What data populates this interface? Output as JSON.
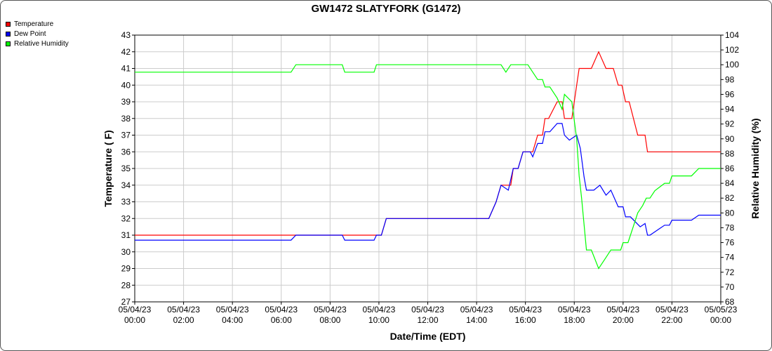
{
  "chart_data": {
    "type": "line",
    "title": "GW1472 SLATYFORK (G1472)",
    "xlabel": "Date/Time (EDT)",
    "ylabel": "Temperature ( F)",
    "y2label": "Relative Humidity (%)",
    "xlim": [
      0,
      24
    ],
    "ylim": [
      27,
      43
    ],
    "y2lim": [
      68,
      104
    ],
    "grid": true,
    "legend_position": "top-left",
    "x_ticks": [
      {
        "value": 0,
        "date": "05/04/23",
        "time": "00:00"
      },
      {
        "value": 2,
        "date": "05/04/23",
        "time": "02:00"
      },
      {
        "value": 4,
        "date": "05/04/23",
        "time": "04:00"
      },
      {
        "value": 6,
        "date": "05/04/23",
        "time": "06:00"
      },
      {
        "value": 8,
        "date": "05/04/23",
        "time": "08:00"
      },
      {
        "value": 10,
        "date": "05/04/23",
        "time": "10:00"
      },
      {
        "value": 12,
        "date": "05/04/23",
        "time": "12:00"
      },
      {
        "value": 14,
        "date": "05/04/23",
        "time": "14:00"
      },
      {
        "value": 16,
        "date": "05/04/23",
        "time": "16:00"
      },
      {
        "value": 18,
        "date": "05/04/23",
        "time": "18:00"
      },
      {
        "value": 20,
        "date": "05/04/23",
        "time": "20:00"
      },
      {
        "value": 22,
        "date": "05/04/23",
        "time": "22:00"
      },
      {
        "value": 24,
        "date": "05/05/23",
        "time": "00:00"
      }
    ],
    "y_ticks": [
      27,
      28,
      29,
      30,
      31,
      32,
      33,
      34,
      35,
      36,
      37,
      38,
      39,
      40,
      41,
      42,
      43
    ],
    "y2_ticks": [
      68,
      70,
      72,
      74,
      76,
      78,
      80,
      82,
      84,
      86,
      88,
      90,
      92,
      94,
      96,
      98,
      100,
      102,
      104
    ],
    "series": [
      {
        "name": "Temperature",
        "color": "#ff0000",
        "axis": "left",
        "points": [
          [
            0,
            31
          ],
          [
            10.1,
            31
          ],
          [
            10.3,
            32
          ],
          [
            14.5,
            32
          ],
          [
            14.8,
            33
          ],
          [
            15,
            34
          ],
          [
            15.4,
            34
          ],
          [
            15.5,
            35
          ],
          [
            15.7,
            35
          ],
          [
            15.9,
            36
          ],
          [
            16.3,
            36
          ],
          [
            16.5,
            37
          ],
          [
            16.7,
            37
          ],
          [
            16.8,
            38
          ],
          [
            16.95,
            38
          ],
          [
            17.3,
            39
          ],
          [
            17.5,
            39
          ],
          [
            17.6,
            38
          ],
          [
            17.9,
            38
          ],
          [
            18.1,
            40
          ],
          [
            18.2,
            41
          ],
          [
            18.7,
            41
          ],
          [
            19,
            42
          ],
          [
            19.3,
            41
          ],
          [
            19.6,
            41
          ],
          [
            19.8,
            40
          ],
          [
            19.95,
            40
          ],
          [
            20.1,
            39
          ],
          [
            20.25,
            39
          ],
          [
            20.6,
            37
          ],
          [
            20.9,
            37
          ],
          [
            21,
            36
          ],
          [
            24,
            36
          ]
        ]
      },
      {
        "name": "Dew Point",
        "color": "#0000ff",
        "axis": "left",
        "points": [
          [
            0,
            30.7
          ],
          [
            6.4,
            30.7
          ],
          [
            6.6,
            31
          ],
          [
            8.5,
            31
          ],
          [
            8.6,
            30.7
          ],
          [
            9.8,
            30.7
          ],
          [
            9.9,
            31
          ],
          [
            10.1,
            31
          ],
          [
            10.3,
            32
          ],
          [
            14.5,
            32
          ],
          [
            14.8,
            33
          ],
          [
            15,
            34
          ],
          [
            15.3,
            33.7
          ],
          [
            15.5,
            35
          ],
          [
            15.7,
            35
          ],
          [
            15.9,
            36
          ],
          [
            16.2,
            36
          ],
          [
            16.3,
            35.7
          ],
          [
            16.5,
            36.5
          ],
          [
            16.7,
            36.5
          ],
          [
            16.8,
            37.2
          ],
          [
            17,
            37.2
          ],
          [
            17.3,
            37.7
          ],
          [
            17.5,
            37.7
          ],
          [
            17.6,
            37
          ],
          [
            17.8,
            36.7
          ],
          [
            18.1,
            37
          ],
          [
            18.25,
            36.2
          ],
          [
            18.4,
            34.5
          ],
          [
            18.5,
            33.7
          ],
          [
            18.8,
            33.7
          ],
          [
            19.05,
            34
          ],
          [
            19.3,
            33.4
          ],
          [
            19.5,
            33.7
          ],
          [
            19.8,
            32.7
          ],
          [
            20,
            32.7
          ],
          [
            20.1,
            32.1
          ],
          [
            20.3,
            32.1
          ],
          [
            20.7,
            31.5
          ],
          [
            20.9,
            31.7
          ],
          [
            21,
            31
          ],
          [
            21.1,
            31
          ],
          [
            21.5,
            31.4
          ],
          [
            21.7,
            31.6
          ],
          [
            21.9,
            31.6
          ],
          [
            22,
            31.9
          ],
          [
            22.8,
            31.9
          ],
          [
            23.1,
            32.2
          ],
          [
            24,
            32.2
          ]
        ]
      },
      {
        "name": "Relative Humidity",
        "color": "#00ff00",
        "axis": "right",
        "points": [
          [
            0,
            99
          ],
          [
            6.4,
            99
          ],
          [
            6.6,
            100
          ],
          [
            8.5,
            100
          ],
          [
            8.6,
            99
          ],
          [
            9.8,
            99
          ],
          [
            9.9,
            100
          ],
          [
            15,
            100
          ],
          [
            15.2,
            99
          ],
          [
            15.4,
            100
          ],
          [
            16.1,
            100
          ],
          [
            16.3,
            99
          ],
          [
            16.5,
            98
          ],
          [
            16.7,
            98
          ],
          [
            16.8,
            97
          ],
          [
            17,
            97
          ],
          [
            17.3,
            95.5
          ],
          [
            17.5,
            94
          ],
          [
            17.6,
            96
          ],
          [
            17.9,
            95
          ],
          [
            18.1,
            90
          ],
          [
            18.2,
            85
          ],
          [
            18.3,
            82
          ],
          [
            18.5,
            75
          ],
          [
            18.7,
            75
          ],
          [
            19,
            72.5
          ],
          [
            19.3,
            74
          ],
          [
            19.5,
            75
          ],
          [
            19.9,
            75
          ],
          [
            20,
            76
          ],
          [
            20.2,
            76
          ],
          [
            20.4,
            78
          ],
          [
            20.6,
            80
          ],
          [
            20.8,
            81
          ],
          [
            20.95,
            82
          ],
          [
            21.1,
            82
          ],
          [
            21.3,
            83
          ],
          [
            21.5,
            83.5
          ],
          [
            21.7,
            84
          ],
          [
            21.9,
            84
          ],
          [
            22,
            85
          ],
          [
            22.8,
            85
          ],
          [
            23.1,
            86
          ],
          [
            24,
            86
          ]
        ]
      }
    ]
  }
}
